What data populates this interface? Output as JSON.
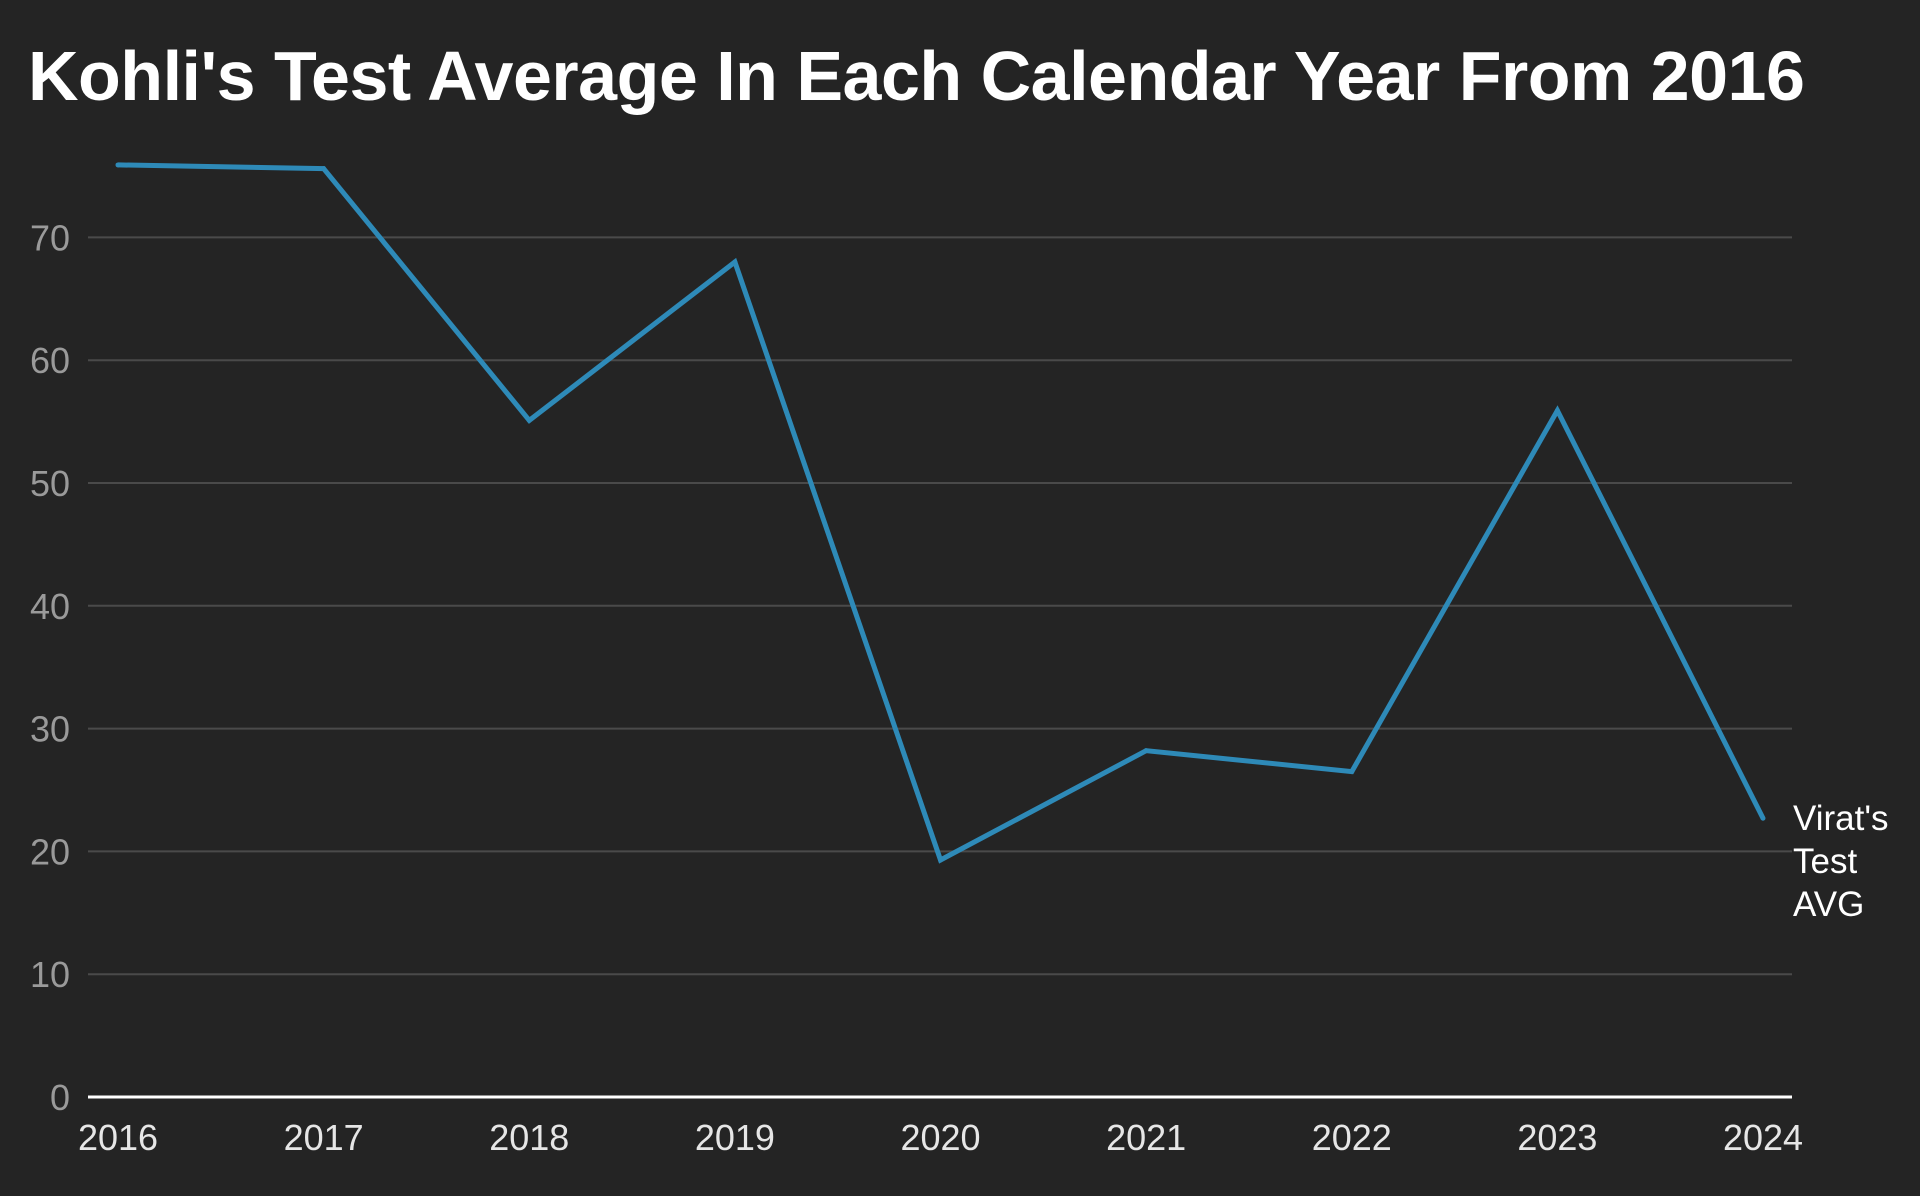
{
  "chart_data": {
    "type": "line",
    "title": "Kohli's Test Average In Each Calendar Year From 2016",
    "xlabel": "",
    "ylabel": "",
    "x": [
      "2016",
      "2017",
      "2018",
      "2019",
      "2020",
      "2021",
      "2022",
      "2023",
      "2024"
    ],
    "ylim": [
      0,
      76
    ],
    "y_ticks": [
      0,
      10,
      20,
      30,
      40,
      50,
      60,
      70
    ],
    "grid": true,
    "legend": "none",
    "series": [
      {
        "name": "Virat's Test AVG",
        "name_lines": [
          "Virat's",
          "Test",
          "AVG"
        ],
        "values": [
          75.9,
          75.6,
          55.1,
          68.0,
          19.3,
          28.2,
          26.5,
          55.9,
          22.7
        ]
      }
    ],
    "colors": {
      "background": "#242424",
      "line": "#2e8ab8",
      "grid": "#4a4a4a",
      "axis": "#ffffff"
    }
  }
}
